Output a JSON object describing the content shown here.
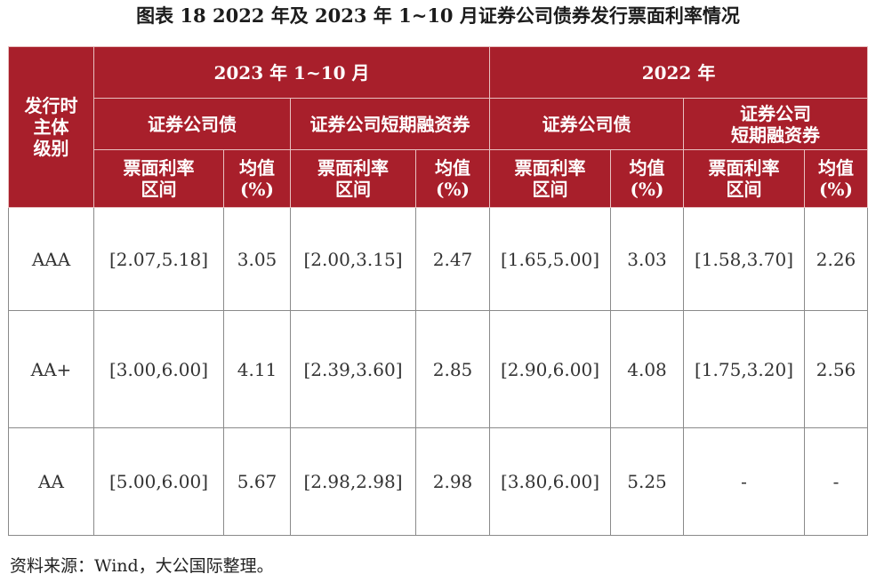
{
  "title": "图表 18  2022 年及 2023 年 1~10 月证券公司债券发行票面利率情况",
  "header": {
    "rating_col": [
      "发行时",
      "主体",
      "级别"
    ],
    "periods": [
      "2023 年 1~10 月",
      "2022 年"
    ],
    "groups": [
      [
        "证券公司债"
      ],
      [
        "证券公司短期融资券"
      ],
      [
        "证券公司债"
      ],
      [
        "证券公司",
        "短期融资券"
      ]
    ],
    "range_label": [
      "票面利率",
      "区间"
    ],
    "mean_label": [
      "均值",
      "(%)"
    ]
  },
  "rows": [
    {
      "rating": "AAA",
      "cells": [
        "[2.07,5.18]",
        "3.05",
        "[2.00,3.15]",
        "2.47",
        "[1.65,5.00]",
        "3.03",
        "[1.58,3.70]",
        "2.26"
      ]
    },
    {
      "rating": "AA+",
      "cells": [
        "[3.00,6.00]",
        "4.11",
        "[2.39,3.60]",
        "2.85",
        "[2.90,6.00]",
        "4.08",
        "[1.75,3.20]",
        "2.56"
      ]
    },
    {
      "rating": "AA",
      "cells": [
        "[5.00,6.00]",
        "5.67",
        "[2.98,2.98]",
        "2.98",
        "[3.80,6.00]",
        "5.25",
        "-",
        "-"
      ]
    }
  ],
  "source_note": "资料来源：Wind，大公国际整理。"
}
